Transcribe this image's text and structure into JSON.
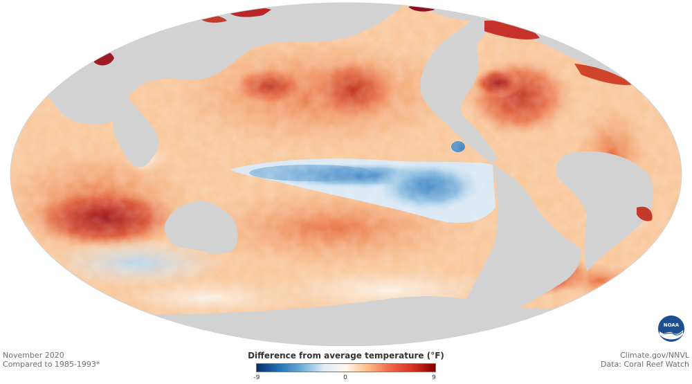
{
  "map": {
    "projection": "Mollweide",
    "land_color": "#d2d2d2",
    "background_color": "#ffffff"
  },
  "left_credit": {
    "line1": "November 2020",
    "line2": "Compared to 1985-1993*"
  },
  "right_credit": {
    "line1": "Climate.gov/NNVL",
    "line2": "Data: Coral Reef Watch"
  },
  "legend": {
    "title": "Difference from average temperature (°F)",
    "min_label": "-9",
    "mid_label": "0",
    "max_label": "9",
    "range": [
      -9,
      9
    ],
    "colors": [
      "#08306b",
      "#2171b5",
      "#6baed6",
      "#deebf7",
      "#fff7ec",
      "#fdbb84",
      "#ef6548",
      "#d7301f",
      "#7f0000"
    ]
  },
  "logo": {
    "text": "NOAA",
    "icon": "noaa-logo-icon"
  }
}
